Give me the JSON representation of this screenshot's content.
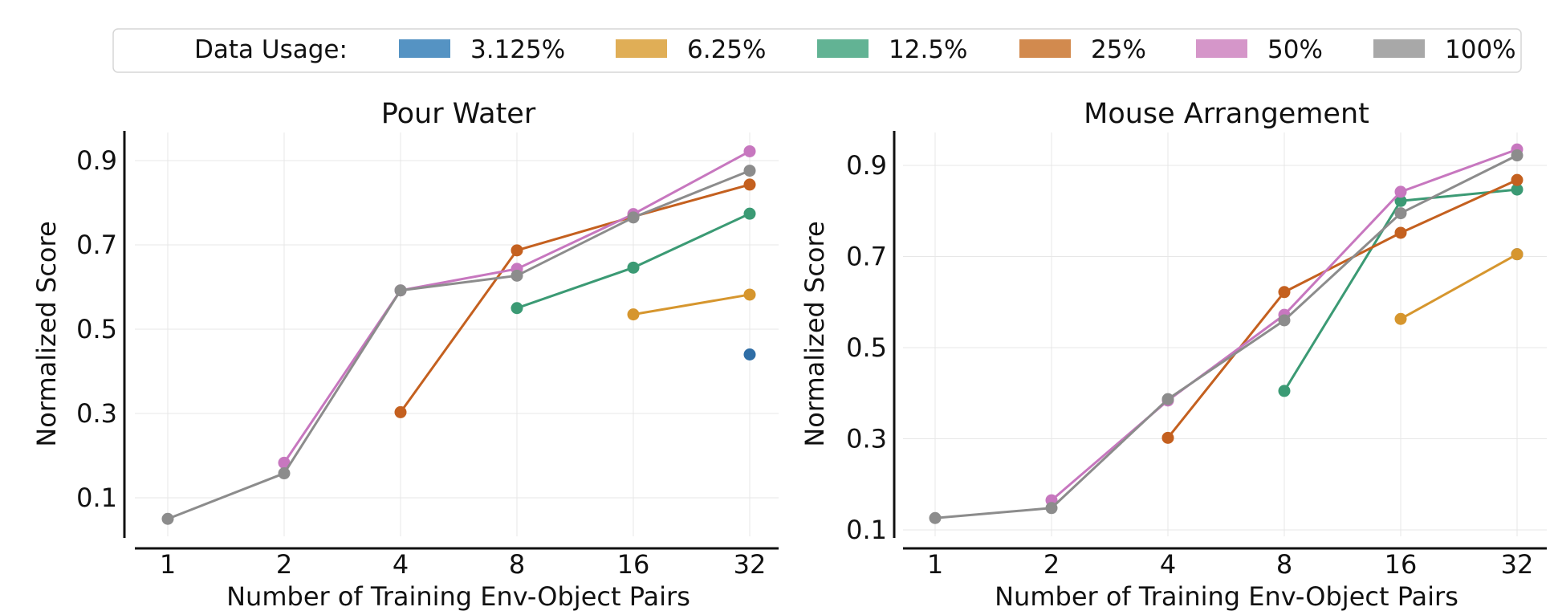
{
  "legend": {
    "title": "Data Usage:",
    "entries": [
      {
        "label": "3.125%",
        "color": "#5593c3"
      },
      {
        "label": "6.25%",
        "color": "#e0ae56"
      },
      {
        "label": "12.5%",
        "color": "#62b394"
      },
      {
        "label": "25%",
        "color": "#d28a4e"
      },
      {
        "label": "50%",
        "color": "#d596c9"
      },
      {
        "label": "100%",
        "color": "#a8a8a8"
      }
    ]
  },
  "chart_data": [
    {
      "type": "line",
      "title": "Pour Water",
      "xlabel": "Number of Training Env-Object Pairs",
      "ylabel": "Normalized Score",
      "categories": [
        "1",
        "2",
        "4",
        "8",
        "16",
        "32"
      ],
      "yticks": [
        "0.1",
        "0.3",
        "0.5",
        "0.7",
        "0.9"
      ],
      "ylim": [
        0.0,
        0.96
      ],
      "series": [
        {
          "name": "3.125%",
          "color": "#2f6ea6",
          "values": [
            null,
            null,
            null,
            null,
            null,
            0.44
          ]
        },
        {
          "name": "6.25%",
          "color": "#d6962e",
          "values": [
            null,
            null,
            null,
            null,
            0.535,
            0.582
          ]
        },
        {
          "name": "12.5%",
          "color": "#3b9a74",
          "values": [
            null,
            null,
            null,
            0.55,
            0.646,
            0.774
          ]
        },
        {
          "name": "25%",
          "color": "#c4601f",
          "values": [
            null,
            null,
            0.303,
            0.687,
            0.767,
            0.843
          ]
        },
        {
          "name": "50%",
          "color": "#c777bf",
          "values": [
            null,
            0.183,
            0.592,
            0.643,
            0.773,
            0.922
          ]
        },
        {
          "name": "100%",
          "color": "#8c8c8c",
          "values": [
            0.05,
            0.158,
            0.592,
            0.627,
            0.765,
            0.876
          ]
        }
      ]
    },
    {
      "type": "line",
      "title": "Mouse Arrangement",
      "xlabel": "Number of Training Env-Object Pairs",
      "ylabel": "Normalized Score",
      "categories": [
        "1",
        "2",
        "4",
        "8",
        "16",
        "32"
      ],
      "yticks": [
        "0.1",
        "0.3",
        "0.5",
        "0.7",
        "0.9"
      ],
      "ylim": [
        0.1,
        0.98
      ],
      "series": [
        {
          "name": "3.125%",
          "color": "#2f6ea6",
          "values": [
            null,
            null,
            null,
            null,
            null,
            0.705
          ]
        },
        {
          "name": "6.25%",
          "color": "#d6962e",
          "values": [
            null,
            null,
            null,
            null,
            0.563,
            0.705
          ]
        },
        {
          "name": "12.5%",
          "color": "#3b9a74",
          "values": [
            null,
            null,
            null,
            0.405,
            0.822,
            0.847
          ]
        },
        {
          "name": "25%",
          "color": "#c4601f",
          "values": [
            null,
            null,
            0.302,
            0.622,
            0.752,
            0.868
          ]
        },
        {
          "name": "50%",
          "color": "#c777bf",
          "values": [
            null,
            0.165,
            0.384,
            0.572,
            0.842,
            0.935
          ]
        },
        {
          "name": "100%",
          "color": "#8c8c8c",
          "values": [
            0.126,
            0.148,
            0.387,
            0.56,
            0.795,
            0.922
          ]
        }
      ]
    }
  ]
}
